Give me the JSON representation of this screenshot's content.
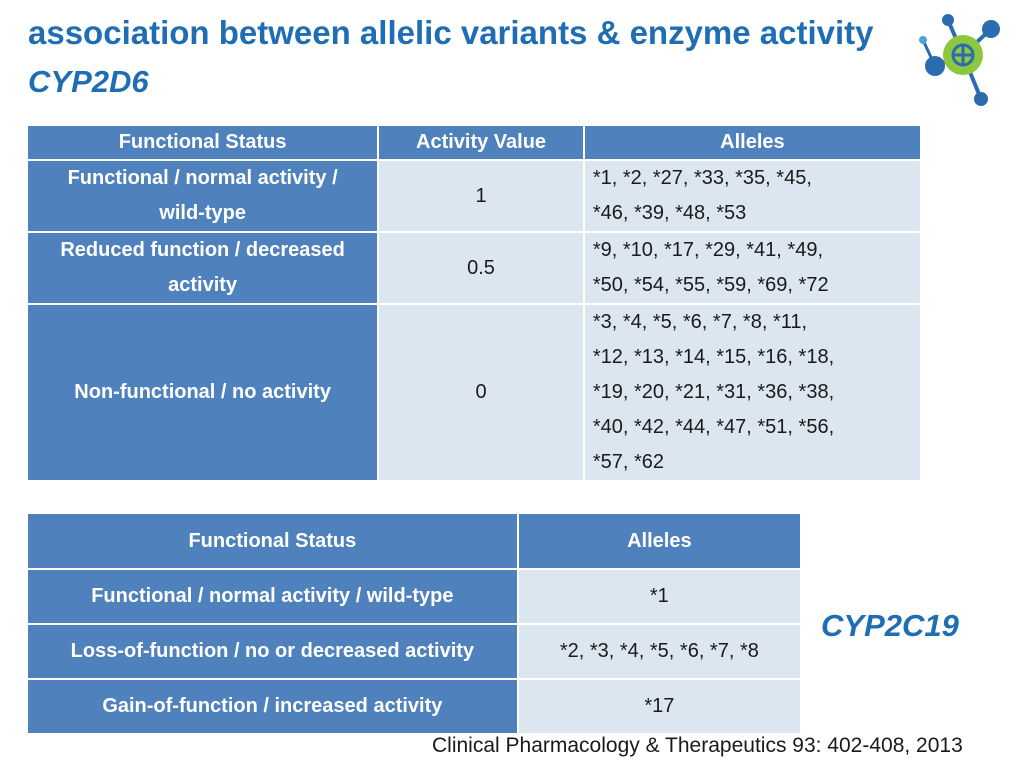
{
  "header": {
    "title": "association between allelic variants & enzyme activity",
    "subtitle": "CYP2D6"
  },
  "logo": {
    "icon": "molecule-logo-icon",
    "colors": [
      "#2b6cb0",
      "#8dc63f",
      "#4aa3d9"
    ]
  },
  "table_cyp2d6": {
    "headers": [
      "Functional Status",
      "Activity Value",
      "Alleles"
    ],
    "rows": [
      {
        "status": [
          "Functional / normal activity /",
          "wild-type"
        ],
        "value": "1",
        "alleles": [
          "*1, *2, *27, *33, *35, *45,",
          "*46, *39, *48, *53"
        ]
      },
      {
        "status": [
          "Reduced function / decreased",
          "activity"
        ],
        "value": "0.5",
        "alleles": [
          "*9, *10, *17, *29, *41, *49,",
          "*50, *54, *55, *59, *69, *72"
        ]
      },
      {
        "status": [
          "Non-functional / no activity"
        ],
        "value": "0",
        "alleles": [
          "*3, *4, *5, *6, *7, *8, *11,",
          "*12, *13, *14, *15, *16, *18,",
          "*19, *20, *21, *31, *36, *38,",
          "*40, *42, *44, *47, *51, *56,",
          "*57, *62"
        ]
      }
    ]
  },
  "table_cyp2c19": {
    "headers": [
      "Functional Status",
      "Alleles"
    ],
    "rows": [
      {
        "status": "Functional / normal activity / wild-type",
        "alleles": "*1"
      },
      {
        "status": "Loss-of-function / no or decreased activity",
        "alleles": "*2, *3, *4, *5, *6, *7, *8"
      },
      {
        "status": "Gain-of-function / increased activity",
        "alleles": "*17"
      }
    ]
  },
  "label_cyp2c19": "CYP2C19",
  "citation": "Clinical Pharmacology & Therapeutics 93: 402-408, 2013",
  "colors": {
    "header_bg": "#4f81bd",
    "cell_bg": "#dce6f1",
    "accent": "#1f6db3"
  }
}
